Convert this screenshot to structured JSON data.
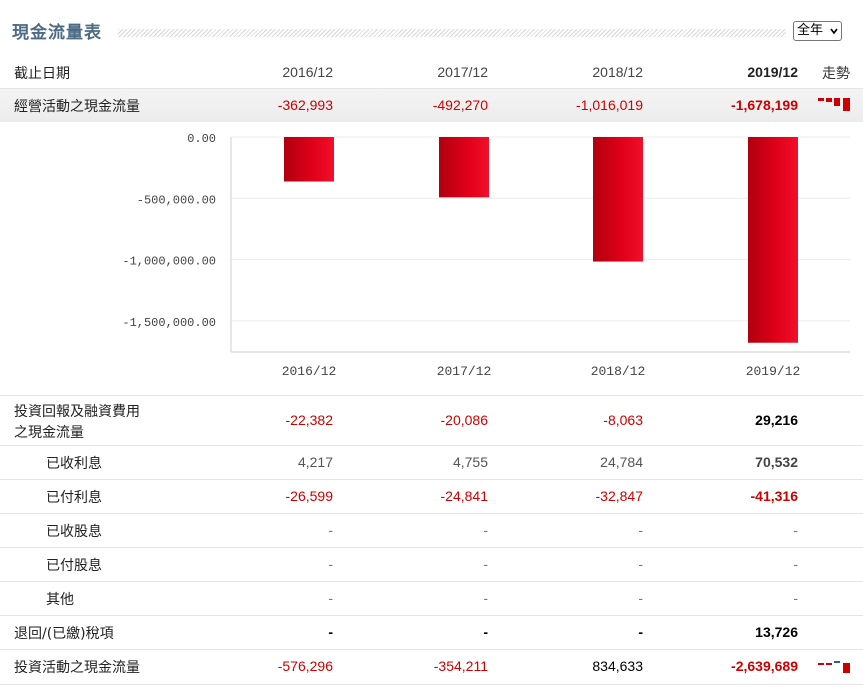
{
  "title": "現金流量表",
  "period_select": {
    "value": "全年"
  },
  "header": {
    "label": "截止日期",
    "periods": [
      "2016/12",
      "2017/12",
      "2018/12",
      "2019/12"
    ],
    "trend": "走勢"
  },
  "operating": {
    "label": "經營活動之現金流量",
    "values": [
      "-362,993",
      "-492,270",
      "-1,016,019",
      "-1,678,199"
    ]
  },
  "chart_data": {
    "type": "bar",
    "categories": [
      "2016/12",
      "2017/12",
      "2018/12",
      "2019/12"
    ],
    "values": [
      -362993,
      -492270,
      -1016019,
      -1678199
    ],
    "yticks": [
      "0.00",
      "-500,000.00",
      "-1,000,000.00",
      "-1,500,000.00"
    ],
    "ylim": [
      -1750000,
      0
    ],
    "bar_color": "#e2001a"
  },
  "rows": [
    {
      "label_lines": [
        "投資回報及融資費用",
        "之現金流量"
      ],
      "values": [
        "-22,382",
        "-20,086",
        "-8,063",
        "29,216"
      ]
    },
    {
      "label": "已收利息",
      "values": [
        "4,217",
        "4,755",
        "24,784",
        "70,532"
      ]
    },
    {
      "label": "已付利息",
      "values": [
        "-26,599",
        "-24,841",
        "-32,847",
        "-41,316"
      ]
    },
    {
      "label": "已收股息",
      "values": [
        "-",
        "-",
        "-",
        "-"
      ]
    },
    {
      "label": "已付股息",
      "values": [
        "-",
        "-",
        "-",
        "-"
      ]
    },
    {
      "label": "其他",
      "values": [
        "-",
        "-",
        "-",
        "-"
      ]
    },
    {
      "label": "退回/(已繳)稅項",
      "values": [
        "-",
        "-",
        "-",
        "13,726"
      ]
    },
    {
      "label": "投資活動之現金流量",
      "values": [
        "-576,296",
        "-354,211",
        "834,633",
        "-2,639,689"
      ]
    }
  ],
  "colors": {
    "title": "#4c6c86",
    "negative": "#cc0000",
    "bar": "#e2001a",
    "spark_blue": "#2c5f8a"
  }
}
